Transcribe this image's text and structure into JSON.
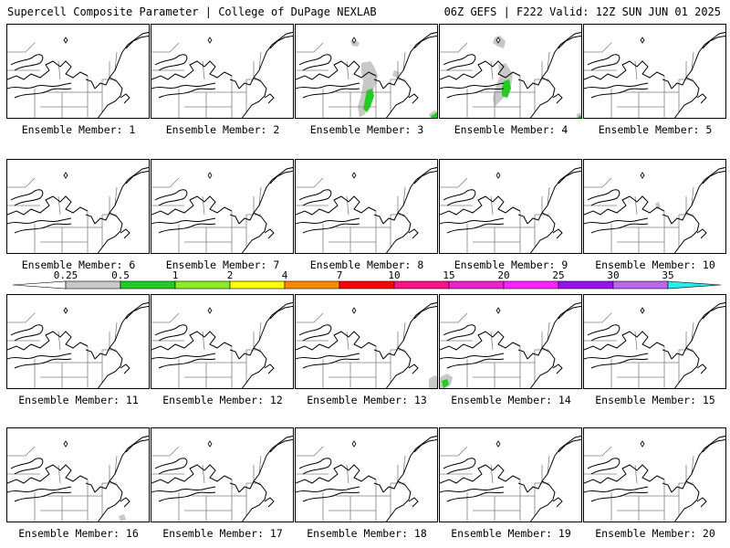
{
  "header": {
    "left": "Supercell Composite Parameter | College of DuPage NEXLAB",
    "right": "06Z GEFS | F222 Valid: 12Z SUN JUN 01 2025"
  },
  "member_label_prefix": "Ensemble Member: ",
  "members": [
    {
      "id": "1",
      "blobs": []
    },
    {
      "id": "2",
      "blobs": []
    },
    {
      "id": "3",
      "blobs": [
        {
          "level": "0.25",
          "color": "#c8c8c8",
          "pts": [
            [
              60,
              18
            ],
            [
              64,
              16
            ],
            [
              70,
              20
            ],
            [
              68,
              24
            ],
            [
              62,
              23
            ]
          ]
        },
        {
          "level": "0.25",
          "color": "#c8c8c8",
          "pts": [
            [
              72,
              42
            ],
            [
              82,
              40
            ],
            [
              86,
              46
            ],
            [
              90,
              56
            ],
            [
              86,
              70
            ],
            [
              80,
              86
            ],
            [
              76,
              98
            ],
            [
              70,
              102
            ],
            [
              68,
              90
            ],
            [
              72,
              76
            ],
            [
              74,
              62
            ],
            [
              72,
              52
            ]
          ]
        },
        {
          "level": "0.25",
          "color": "#c8c8c8",
          "pts": [
            [
              108,
              50
            ],
            [
              114,
              52
            ],
            [
              112,
              58
            ],
            [
              106,
              56
            ]
          ]
        },
        {
          "level": "0.25",
          "color": "#c8c8c8",
          "pts": [
            [
              146,
              98
            ],
            [
              152,
              94
            ],
            [
              157,
              96
            ],
            [
              157,
              104
            ],
            [
              148,
              104
            ]
          ]
        },
        {
          "level": "0.5",
          "color": "#22cc22",
          "pts": [
            [
              78,
              72
            ],
            [
              84,
              70
            ],
            [
              86,
              78
            ],
            [
              82,
              90
            ],
            [
              78,
              96
            ],
            [
              74,
              92
            ],
            [
              76,
              82
            ]
          ]
        },
        {
          "level": "0.5",
          "color": "#22cc22",
          "pts": [
            [
              148,
              100
            ],
            [
              155,
              96
            ],
            [
              157,
              104
            ],
            [
              150,
              104
            ]
          ]
        }
      ]
    },
    {
      "id": "4",
      "blobs": [
        {
          "level": "0.25",
          "color": "#c8c8c8",
          "pts": [
            [
              60,
              14
            ],
            [
              66,
              12
            ],
            [
              72,
              18
            ],
            [
              70,
              26
            ],
            [
              64,
              24
            ],
            [
              58,
              20
            ]
          ]
        },
        {
          "level": "0.25",
          "color": "#c8c8c8",
          "pts": [
            [
              64,
              44
            ],
            [
              72,
              42
            ],
            [
              80,
              54
            ],
            [
              78,
              68
            ],
            [
              72,
              78
            ],
            [
              66,
              84
            ],
            [
              60,
              90
            ],
            [
              58,
              80
            ],
            [
              62,
              66
            ],
            [
              66,
              56
            ]
          ]
        },
        {
          "level": "0.25",
          "color": "#c8c8c8",
          "pts": [
            [
              150,
              98
            ],
            [
              156,
              96
            ],
            [
              157,
              104
            ],
            [
              150,
              104
            ]
          ]
        },
        {
          "level": "0.5",
          "color": "#22cc22",
          "pts": [
            [
              70,
              62
            ],
            [
              76,
              60
            ],
            [
              78,
              70
            ],
            [
              74,
              80
            ],
            [
              68,
              78
            ],
            [
              68,
              70
            ]
          ]
        },
        {
          "level": "0.5",
          "color": "#22cc22",
          "pts": [
            [
              152,
              100
            ],
            [
              157,
              99
            ],
            [
              157,
              104
            ],
            [
              152,
              104
            ]
          ]
        }
      ]
    },
    {
      "id": "5",
      "blobs": []
    },
    {
      "id": "6",
      "blobs": []
    },
    {
      "id": "7",
      "blobs": []
    },
    {
      "id": "8",
      "blobs": []
    },
    {
      "id": "9",
      "blobs": []
    },
    {
      "id": "10",
      "blobs": [
        {
          "level": "0.25",
          "color": "#c8c8c8",
          "pts": [
            [
              78,
              48
            ],
            [
              82,
              46
            ],
            [
              84,
              52
            ],
            [
              80,
              54
            ]
          ]
        }
      ]
    },
    {
      "id": "11",
      "blobs": []
    },
    {
      "id": "12",
      "blobs": []
    },
    {
      "id": "13",
      "blobs": [
        {
          "level": "0.25",
          "color": "#c8c8c8",
          "pts": [
            [
              146,
              92
            ],
            [
              152,
              88
            ],
            [
              157,
              90
            ],
            [
              157,
              104
            ],
            [
              146,
              104
            ]
          ]
        }
      ]
    },
    {
      "id": "14",
      "blobs": [
        {
          "level": "0.25",
          "color": "#c8c8c8",
          "pts": [
            [
              0,
              90
            ],
            [
              8,
              86
            ],
            [
              14,
              90
            ],
            [
              12,
              98
            ],
            [
              4,
              104
            ],
            [
              0,
              104
            ]
          ]
        },
        {
          "level": "0.5",
          "color": "#22cc22",
          "pts": [
            [
              2,
              94
            ],
            [
              8,
              92
            ],
            [
              10,
              98
            ],
            [
              4,
              102
            ]
          ]
        }
      ]
    },
    {
      "id": "15",
      "blobs": []
    },
    {
      "id": "16",
      "blobs": [
        {
          "level": "0.25",
          "color": "#c8c8c8",
          "pts": [
            [
              122,
              96
            ],
            [
              128,
              94
            ],
            [
              130,
              100
            ],
            [
              124,
              102
            ]
          ]
        }
      ]
    },
    {
      "id": "17",
      "blobs": []
    },
    {
      "id": "18",
      "blobs": []
    },
    {
      "id": "19",
      "blobs": []
    },
    {
      "id": "20",
      "blobs": []
    }
  ],
  "colorbar": {
    "ticks": [
      "0.25",
      "0.5",
      "1",
      "2",
      "4",
      "7",
      "10",
      "15",
      "20",
      "25",
      "30",
      "35"
    ],
    "colors": [
      "#ffffff",
      "#c8c8c8",
      "#22cc22",
      "#88ee22",
      "#ffff00",
      "#ff8800",
      "#ff0000",
      "#ff1188",
      "#ee22cc",
      "#ff22ff",
      "#9911ee",
      "#bb66ee",
      "#22eeee"
    ]
  },
  "map_style": {
    "border_color": "#000000",
    "state_color": "#808080"
  }
}
